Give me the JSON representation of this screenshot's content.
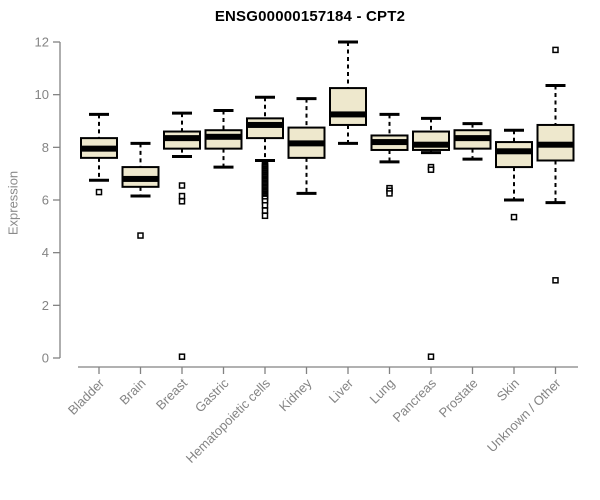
{
  "figure": {
    "title": "ENSG00000157184 - CPT2",
    "ylabel": "Expression"
  },
  "chart_data": {
    "type": "boxplot",
    "title": "ENSG00000157184 - CPT2",
    "xlabel": "",
    "ylabel": "Expression",
    "ylim": [
      0,
      12
    ],
    "yticks": [
      0,
      2,
      4,
      6,
      8,
      10,
      12
    ],
    "grid": false,
    "legend": "none",
    "categories": [
      "Bladder",
      "Brain",
      "Breast",
      "Gastric",
      "Hematopoietic cells",
      "Kidney",
      "Liver",
      "Lung",
      "Pancreas",
      "Prostate",
      "Skin",
      "Unknown / Other"
    ],
    "series": [
      {
        "name": "Bladder",
        "whisker_low": 6.75,
        "q1": 7.6,
        "median": 7.95,
        "q3": 8.35,
        "whisker_high": 9.25,
        "outliers": [
          6.3
        ]
      },
      {
        "name": "Brain",
        "whisker_low": 6.15,
        "q1": 6.5,
        "median": 6.8,
        "q3": 7.25,
        "whisker_high": 8.15,
        "outliers": [
          4.65
        ]
      },
      {
        "name": "Breast",
        "whisker_low": 7.65,
        "q1": 7.95,
        "median": 8.35,
        "q3": 8.6,
        "whisker_high": 9.3,
        "outliers": [
          6.55,
          6.15,
          5.95,
          0.05
        ]
      },
      {
        "name": "Gastric",
        "whisker_low": 7.25,
        "q1": 7.95,
        "median": 8.4,
        "q3": 8.65,
        "whisker_high": 9.4,
        "outliers": []
      },
      {
        "name": "Hematopoietic cells",
        "whisker_low": 7.5,
        "q1": 8.35,
        "median": 8.85,
        "q3": 9.1,
        "whisker_high": 9.9,
        "outliers": [
          7.35,
          7.3,
          7.25,
          7.2,
          7.15,
          7.1,
          7.05,
          7.0,
          6.95,
          6.9,
          6.85,
          6.8,
          6.75,
          6.7,
          6.65,
          6.6,
          6.55,
          6.5,
          6.45,
          6.4,
          6.35,
          6.3,
          6.25,
          6.2,
          6.15,
          6.1,
          6.05,
          5.95,
          5.8,
          5.6,
          5.4
        ]
      },
      {
        "name": "Kidney",
        "whisker_low": 6.25,
        "q1": 7.6,
        "median": 8.15,
        "q3": 8.75,
        "whisker_high": 9.85,
        "outliers": []
      },
      {
        "name": "Liver",
        "whisker_low": 8.15,
        "q1": 8.85,
        "median": 9.25,
        "q3": 10.25,
        "whisker_high": 12.0,
        "outliers": []
      },
      {
        "name": "Lung",
        "whisker_low": 7.45,
        "q1": 7.9,
        "median": 8.2,
        "q3": 8.45,
        "whisker_high": 9.25,
        "outliers": [
          6.45,
          6.35,
          6.25
        ]
      },
      {
        "name": "Pancreas",
        "whisker_low": 7.8,
        "q1": 7.9,
        "median": 8.1,
        "q3": 8.6,
        "whisker_high": 9.1,
        "outliers": [
          7.25,
          7.15,
          0.05
        ]
      },
      {
        "name": "Prostate",
        "whisker_low": 7.55,
        "q1": 7.95,
        "median": 8.35,
        "q3": 8.65,
        "whisker_high": 8.9,
        "outliers": []
      },
      {
        "name": "Skin",
        "whisker_low": 6.0,
        "q1": 7.25,
        "median": 7.85,
        "q3": 8.2,
        "whisker_high": 8.65,
        "outliers": [
          5.35
        ]
      },
      {
        "name": "Unknown / Other",
        "whisker_low": 5.9,
        "q1": 7.5,
        "median": 8.1,
        "q3": 8.85,
        "whisker_high": 10.35,
        "outliers": [
          11.7,
          2.95
        ]
      }
    ],
    "colors": {
      "box_fill": "#EEE8CD",
      "box_stroke": "#000000",
      "median": "#000000",
      "axis": "#828282",
      "tick_text": "#848484",
      "title_text": "#000000",
      "background": "#FFFFFF"
    }
  }
}
